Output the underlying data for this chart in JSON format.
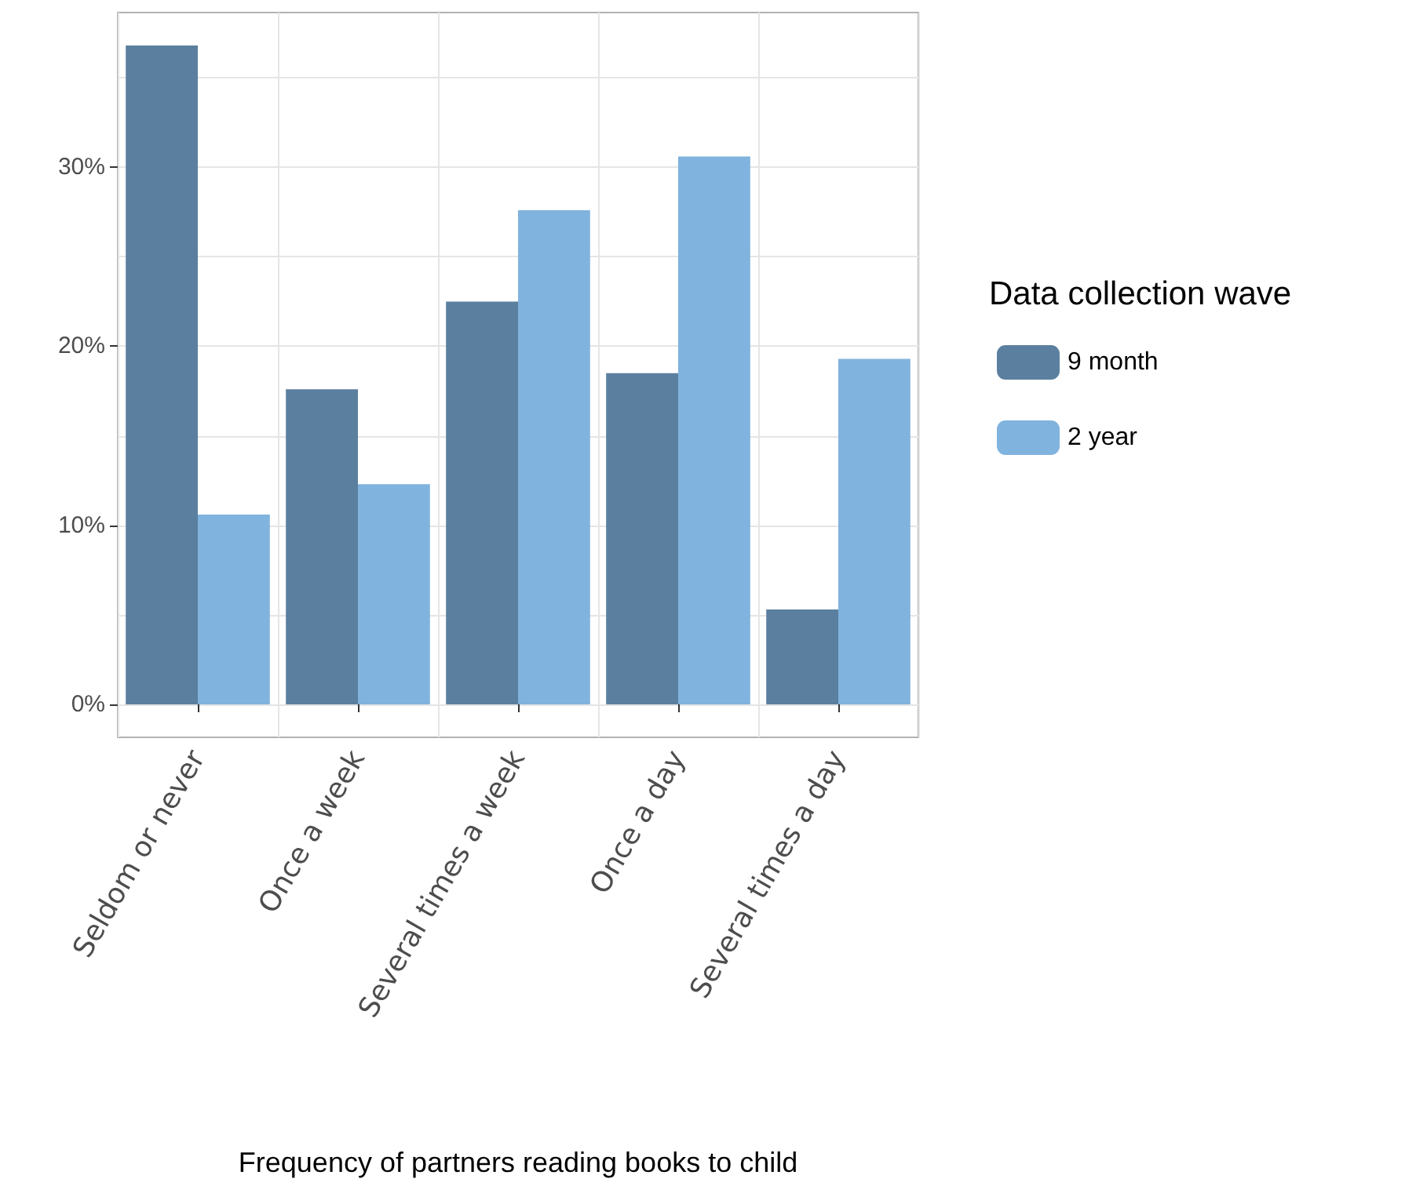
{
  "chart_data": {
    "type": "bar",
    "xlabel": "Frequency of partners reading books to child",
    "legend_title": "Data collection wave",
    "categories": [
      "Seldom or never",
      "Once a week",
      "Several times a week",
      "Once a day",
      "Several times a day"
    ],
    "series": [
      {
        "name": "9 month",
        "color": "#5b7f9f",
        "values": [
          36.8,
          17.6,
          22.5,
          18.5,
          5.3
        ]
      },
      {
        "name": "2 year",
        "color": "#80b3de",
        "values": [
          10.6,
          12.3,
          27.6,
          30.6,
          19.3
        ]
      }
    ],
    "ylim": [
      -1.84,
      38.64
    ],
    "yticks": [
      {
        "value": 0,
        "label": "0%"
      },
      {
        "value": 5,
        "label": null
      },
      {
        "value": 10,
        "label": "10%"
      },
      {
        "value": 15,
        "label": null
      },
      {
        "value": 20,
        "label": "20%"
      },
      {
        "value": 25,
        "label": null
      },
      {
        "value": 30,
        "label": "30%"
      },
      {
        "value": 35,
        "label": null
      }
    ],
    "grid": true,
    "legend": "right"
  }
}
